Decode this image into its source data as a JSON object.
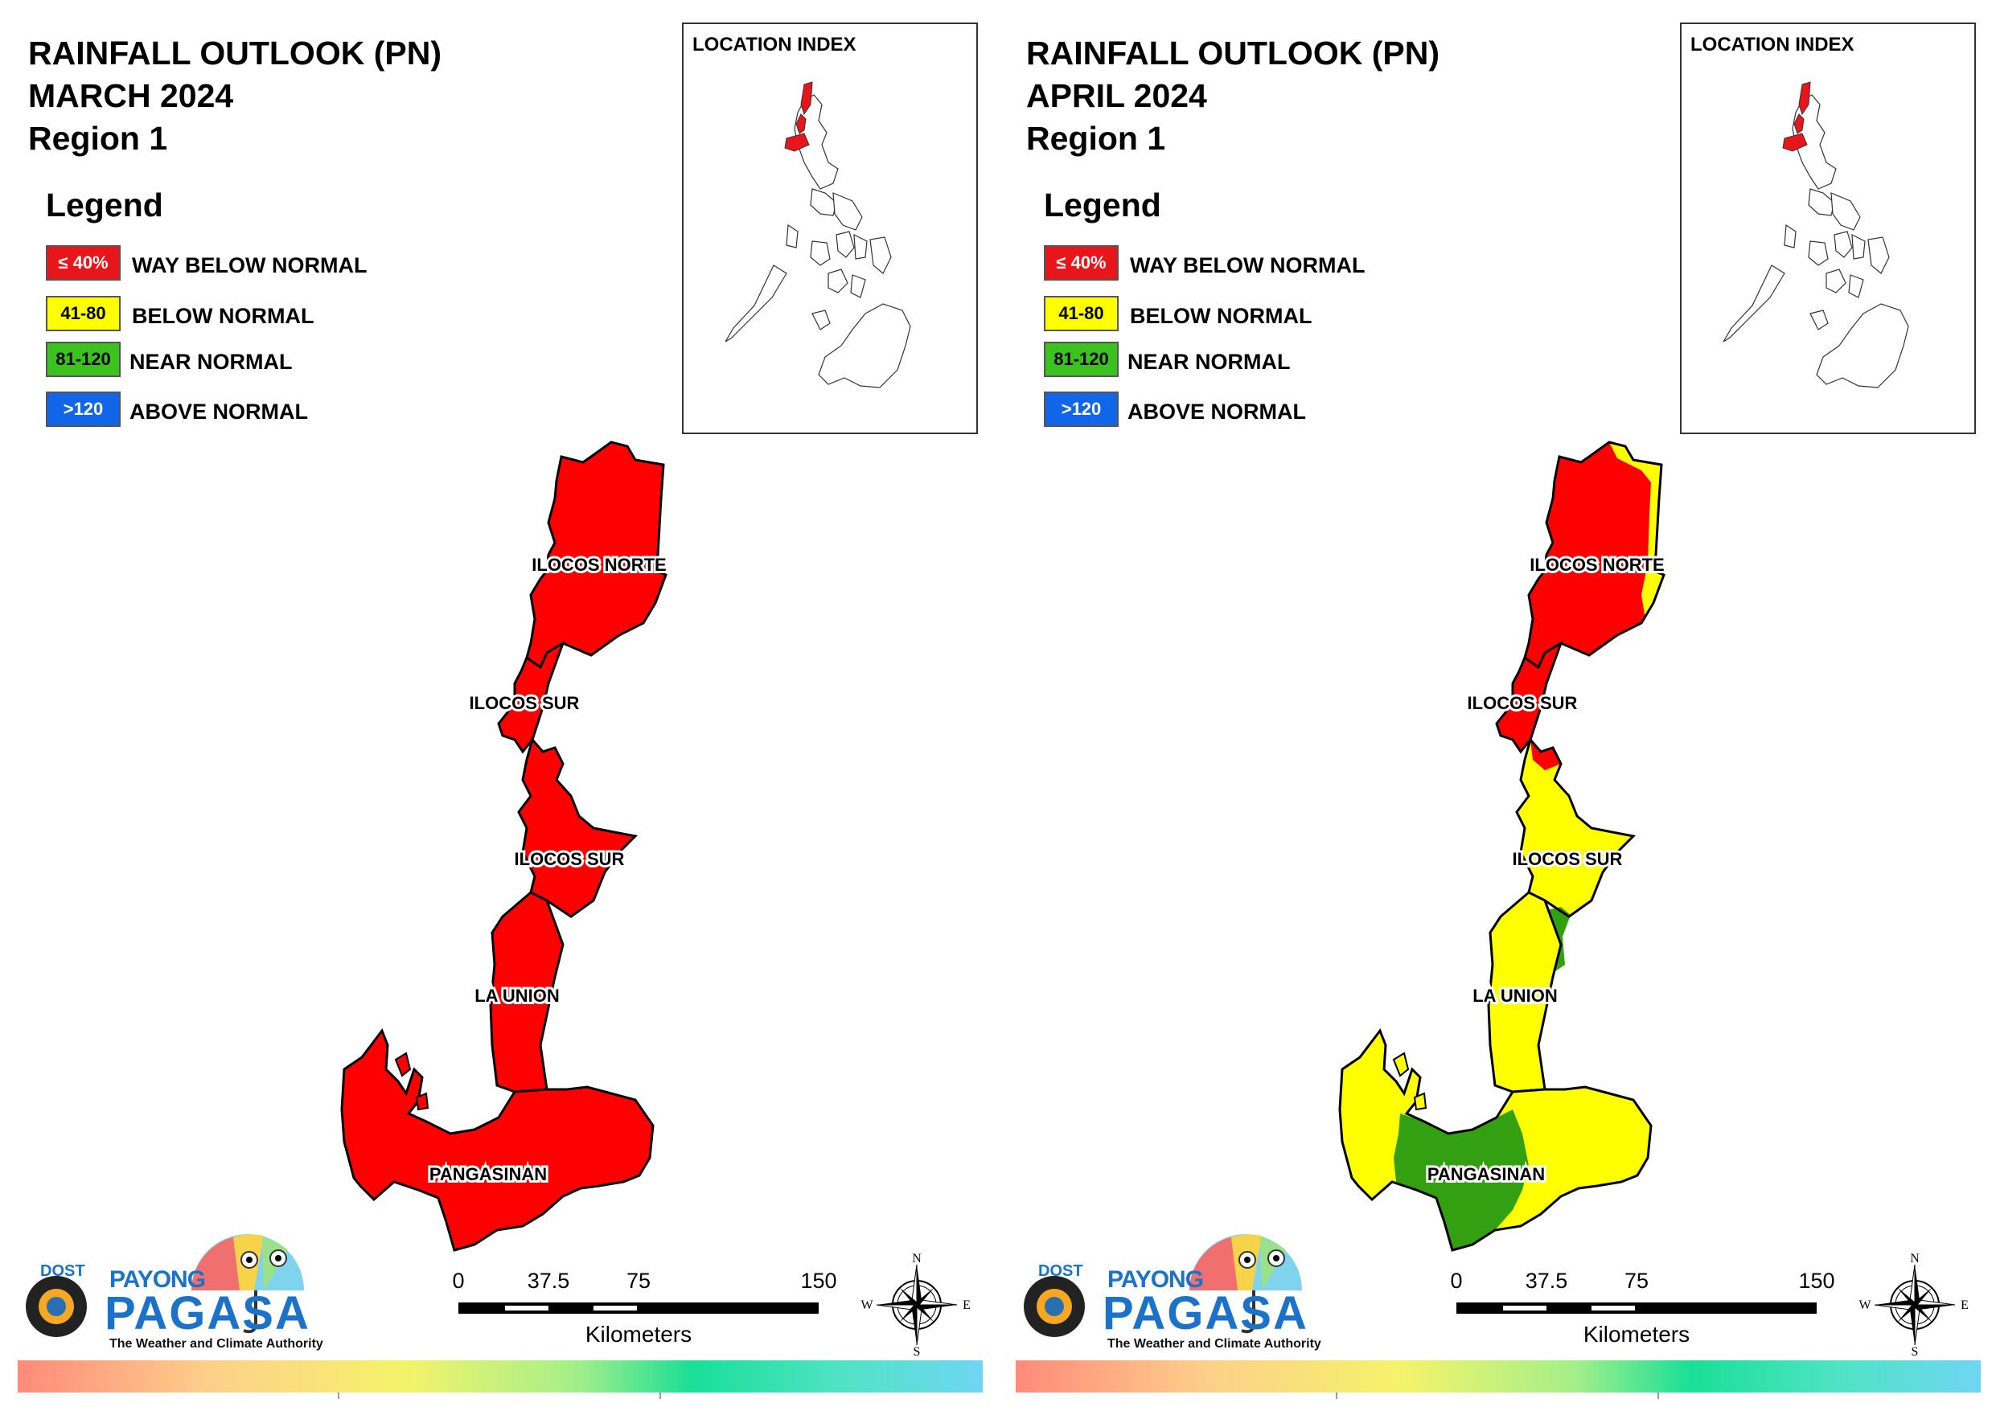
{
  "legend_title": "Legend",
  "legend": [
    {
      "swatch": "≤ 40%",
      "label": "WAY BELOW NORMAL",
      "color": "#e8161b",
      "text_color": "#ffffff"
    },
    {
      "swatch": "41-80",
      "label": "BELOW NORMAL",
      "color": "#ffff00",
      "text_color": "#000000"
    },
    {
      "swatch": "81-120",
      "label": "NEAR NORMAL",
      "color": "#3cc21e",
      "text_color": "#000000"
    },
    {
      "swatch": ">120",
      "label": "ABOVE NORMAL",
      "color": "#1165e8",
      "text_color": "#ffffff"
    }
  ],
  "inset_title": "LOCATION INDEX",
  "scale": {
    "ticks": [
      "0",
      "37.5",
      "75",
      "150"
    ],
    "unit": "Kilometers"
  },
  "compass": {
    "n": "N",
    "s": "S",
    "e": "E",
    "w": "W"
  },
  "logo": {
    "dost": "DOST",
    "payong": "PAYONG",
    "pagasa": "PAGASA",
    "tagline": "The Weather and Climate Authority"
  },
  "maps": [
    {
      "title_line1": "RAINFALL OUTLOOK (PN)",
      "title_line2": "MARCH 2024",
      "title_line3": "Region 1",
      "provinces": [
        {
          "name": "ILOCOS NORTE",
          "category": "WAY BELOW NORMAL"
        },
        {
          "name": "ILOCOS SUR",
          "category": "WAY BELOW NORMAL"
        },
        {
          "name": "ILOCOS SUR",
          "category": "WAY BELOW NORMAL"
        },
        {
          "name": "LA UNION",
          "category": "WAY BELOW NORMAL"
        },
        {
          "name": "PANGASINAN",
          "category": "WAY BELOW NORMAL"
        }
      ]
    },
    {
      "title_line1": "RAINFALL OUTLOOK (PN)",
      "title_line2": "APRIL 2024",
      "title_line3": "Region 1",
      "provinces": [
        {
          "name": "ILOCOS NORTE",
          "category": "WAY BELOW NORMAL",
          "minor": "BELOW NORMAL"
        },
        {
          "name": "ILOCOS SUR",
          "category": "WAY BELOW NORMAL"
        },
        {
          "name": "ILOCOS SUR",
          "category": "BELOW NORMAL",
          "minor": "NEAR NORMAL"
        },
        {
          "name": "LA UNION",
          "category": "BELOW NORMAL"
        },
        {
          "name": "PANGASINAN",
          "category": "BELOW NORMAL",
          "minor": "NEAR NORMAL"
        }
      ]
    }
  ]
}
